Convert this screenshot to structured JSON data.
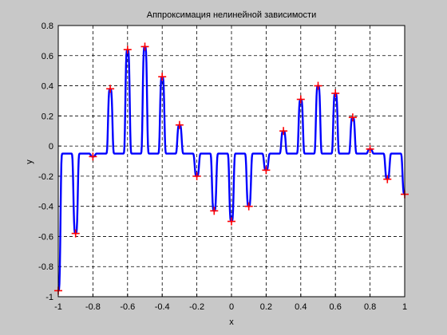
{
  "chart_data": {
    "type": "line",
    "title": "Аппроксимация нелинейной зависимости",
    "xlabel": "x",
    "ylabel": "y",
    "xlim": [
      -1,
      1
    ],
    "ylim": [
      -1,
      0.8
    ],
    "xticks": [
      "-1",
      "-0.8",
      "-0.6",
      "-0.4",
      "-0.2",
      "0",
      "0.2",
      "0.4",
      "0.6",
      "0.8",
      "1"
    ],
    "xtick_values": [
      -1,
      -0.8,
      -0.6,
      -0.4,
      -0.2,
      0,
      0.2,
      0.4,
      0.6,
      0.8,
      1
    ],
    "yticks": [
      "-1",
      "-0.8",
      "-0.6",
      "-0.4",
      "-0.2",
      "0",
      "0.2",
      "0.4",
      "0.6",
      "0.8"
    ],
    "ytick_values": [
      -1,
      -0.8,
      -0.6,
      -0.4,
      -0.2,
      0,
      0.2,
      0.4,
      0.6,
      0.8
    ],
    "grid": true,
    "colors": {
      "line": "#0000ff",
      "markers": "#ff0000",
      "background": "#c8c8c8",
      "axes": "#ffffff"
    },
    "series": [
      {
        "style": "markers-plus",
        "x": [
          -1,
          -0.9,
          -0.8,
          -0.7,
          -0.6,
          -0.5,
          -0.4,
          -0.3,
          -0.2,
          -0.1,
          0,
          0.1,
          0.2,
          0.3,
          0.4,
          0.5,
          0.6,
          0.7,
          0.8,
          0.9,
          1
        ],
        "y": [
          -0.96,
          -0.58,
          -0.07,
          0.38,
          0.64,
          0.66,
          0.46,
          0.14,
          -0.2,
          -0.43,
          -0.5,
          -0.4,
          -0.16,
          0.1,
          0.31,
          0.4,
          0.35,
          0.19,
          -0.02,
          -0.22,
          -0.32
        ]
      },
      {
        "style": "line",
        "baseline": -0.05,
        "peak_width": 0.014
      }
    ]
  }
}
